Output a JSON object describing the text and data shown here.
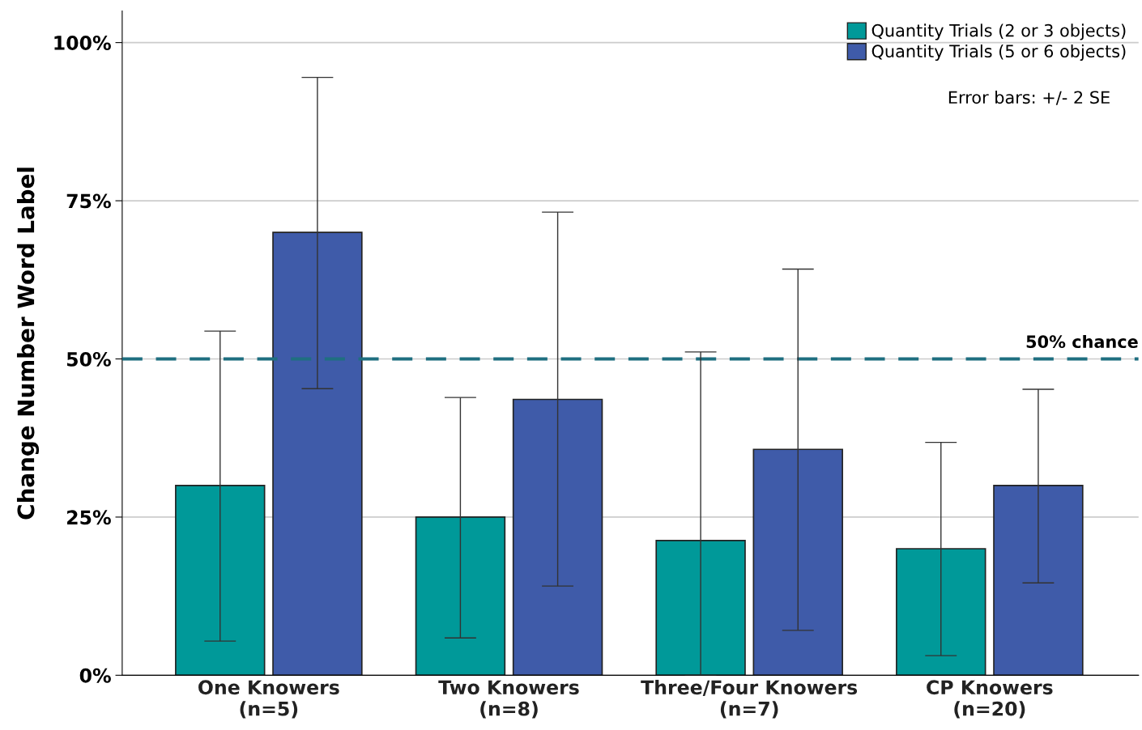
{
  "chart_data": {
    "type": "bar",
    "ylabel": "Change Number Word Label",
    "categories": [
      "One Knowers\n(n=5)",
      "Two Knowers\n(n=8)",
      "Three/Four Knowers\n(n=7)",
      "CP Knowers\n(n=20)"
    ],
    "series": [
      {
        "name": "Quantity Trials (2 or 3 objects)",
        "color": "#009999",
        "values": [
          30,
          25,
          21.3,
          20
        ],
        "errors": [
          [
            5.4,
            54.4
          ],
          [
            5.9,
            43.9
          ],
          [
            0,
            51.1
          ],
          [
            3.1,
            36.8
          ]
        ]
      },
      {
        "name": "Quantity Trials (5 or 6 objects)",
        "color": "#3f5ba9",
        "values": [
          70,
          43.6,
          35.7,
          30
        ],
        "errors": [
          [
            45.3,
            94.5
          ],
          [
            14.1,
            73.2
          ],
          [
            7.1,
            64.2
          ],
          [
            14.6,
            45.2
          ]
        ]
      }
    ],
    "ylim": [
      0,
      105
    ],
    "yticks": [
      {
        "value": 0,
        "label": "0%"
      },
      {
        "value": 25,
        "label": "25%"
      },
      {
        "value": 50,
        "label": "50%"
      },
      {
        "value": 75,
        "label": "75%"
      },
      {
        "value": 100,
        "label": "100%"
      }
    ],
    "grid": "y",
    "legend": "top right",
    "ref_lines": [
      {
        "axis": "y",
        "value": 50,
        "label": "50% chance",
        "color": "#1f6f80",
        "line_style": "dashed"
      }
    ],
    "annotations": [
      "Error bars: +/- 2 SE"
    ]
  }
}
